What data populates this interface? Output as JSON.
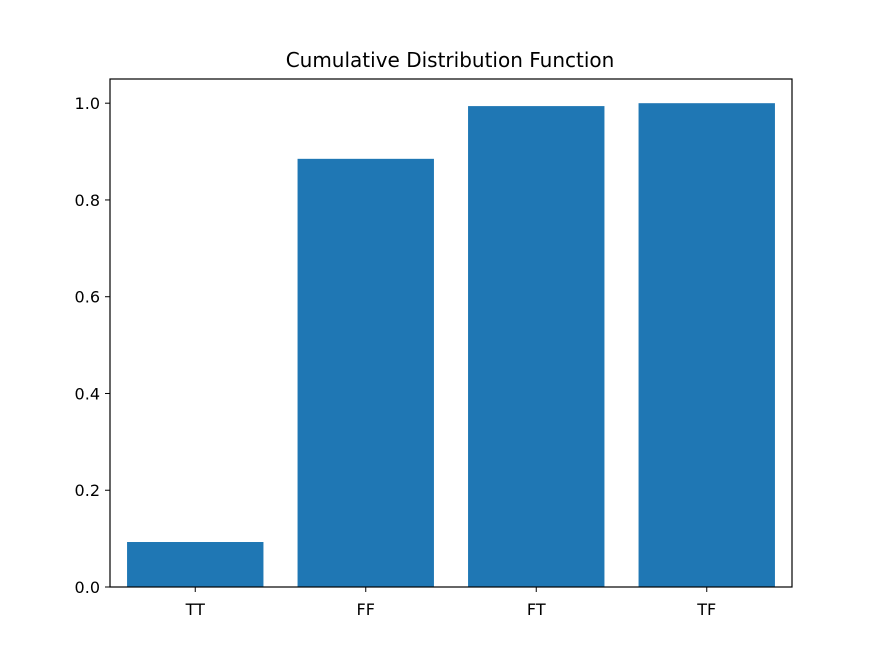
{
  "colors": {
    "bar": "#1f77b4",
    "axis": "#000000",
    "background": "#ffffff"
  },
  "chart_data": {
    "type": "bar",
    "title": "Cumulative Distribution Function",
    "xlabel": "",
    "ylabel": "",
    "categories": [
      "TT",
      "FF",
      "FT",
      "TF"
    ],
    "values": [
      0.093,
      0.885,
      0.994,
      1.0
    ],
    "ylim": [
      0,
      1.05
    ],
    "yticks": [
      0.0,
      0.2,
      0.4,
      0.6,
      0.8,
      1.0
    ],
    "ytick_labels": [
      "0.0",
      "0.2",
      "0.4",
      "0.6",
      "0.8",
      "1.0"
    ],
    "grid": false,
    "legend": "none"
  }
}
